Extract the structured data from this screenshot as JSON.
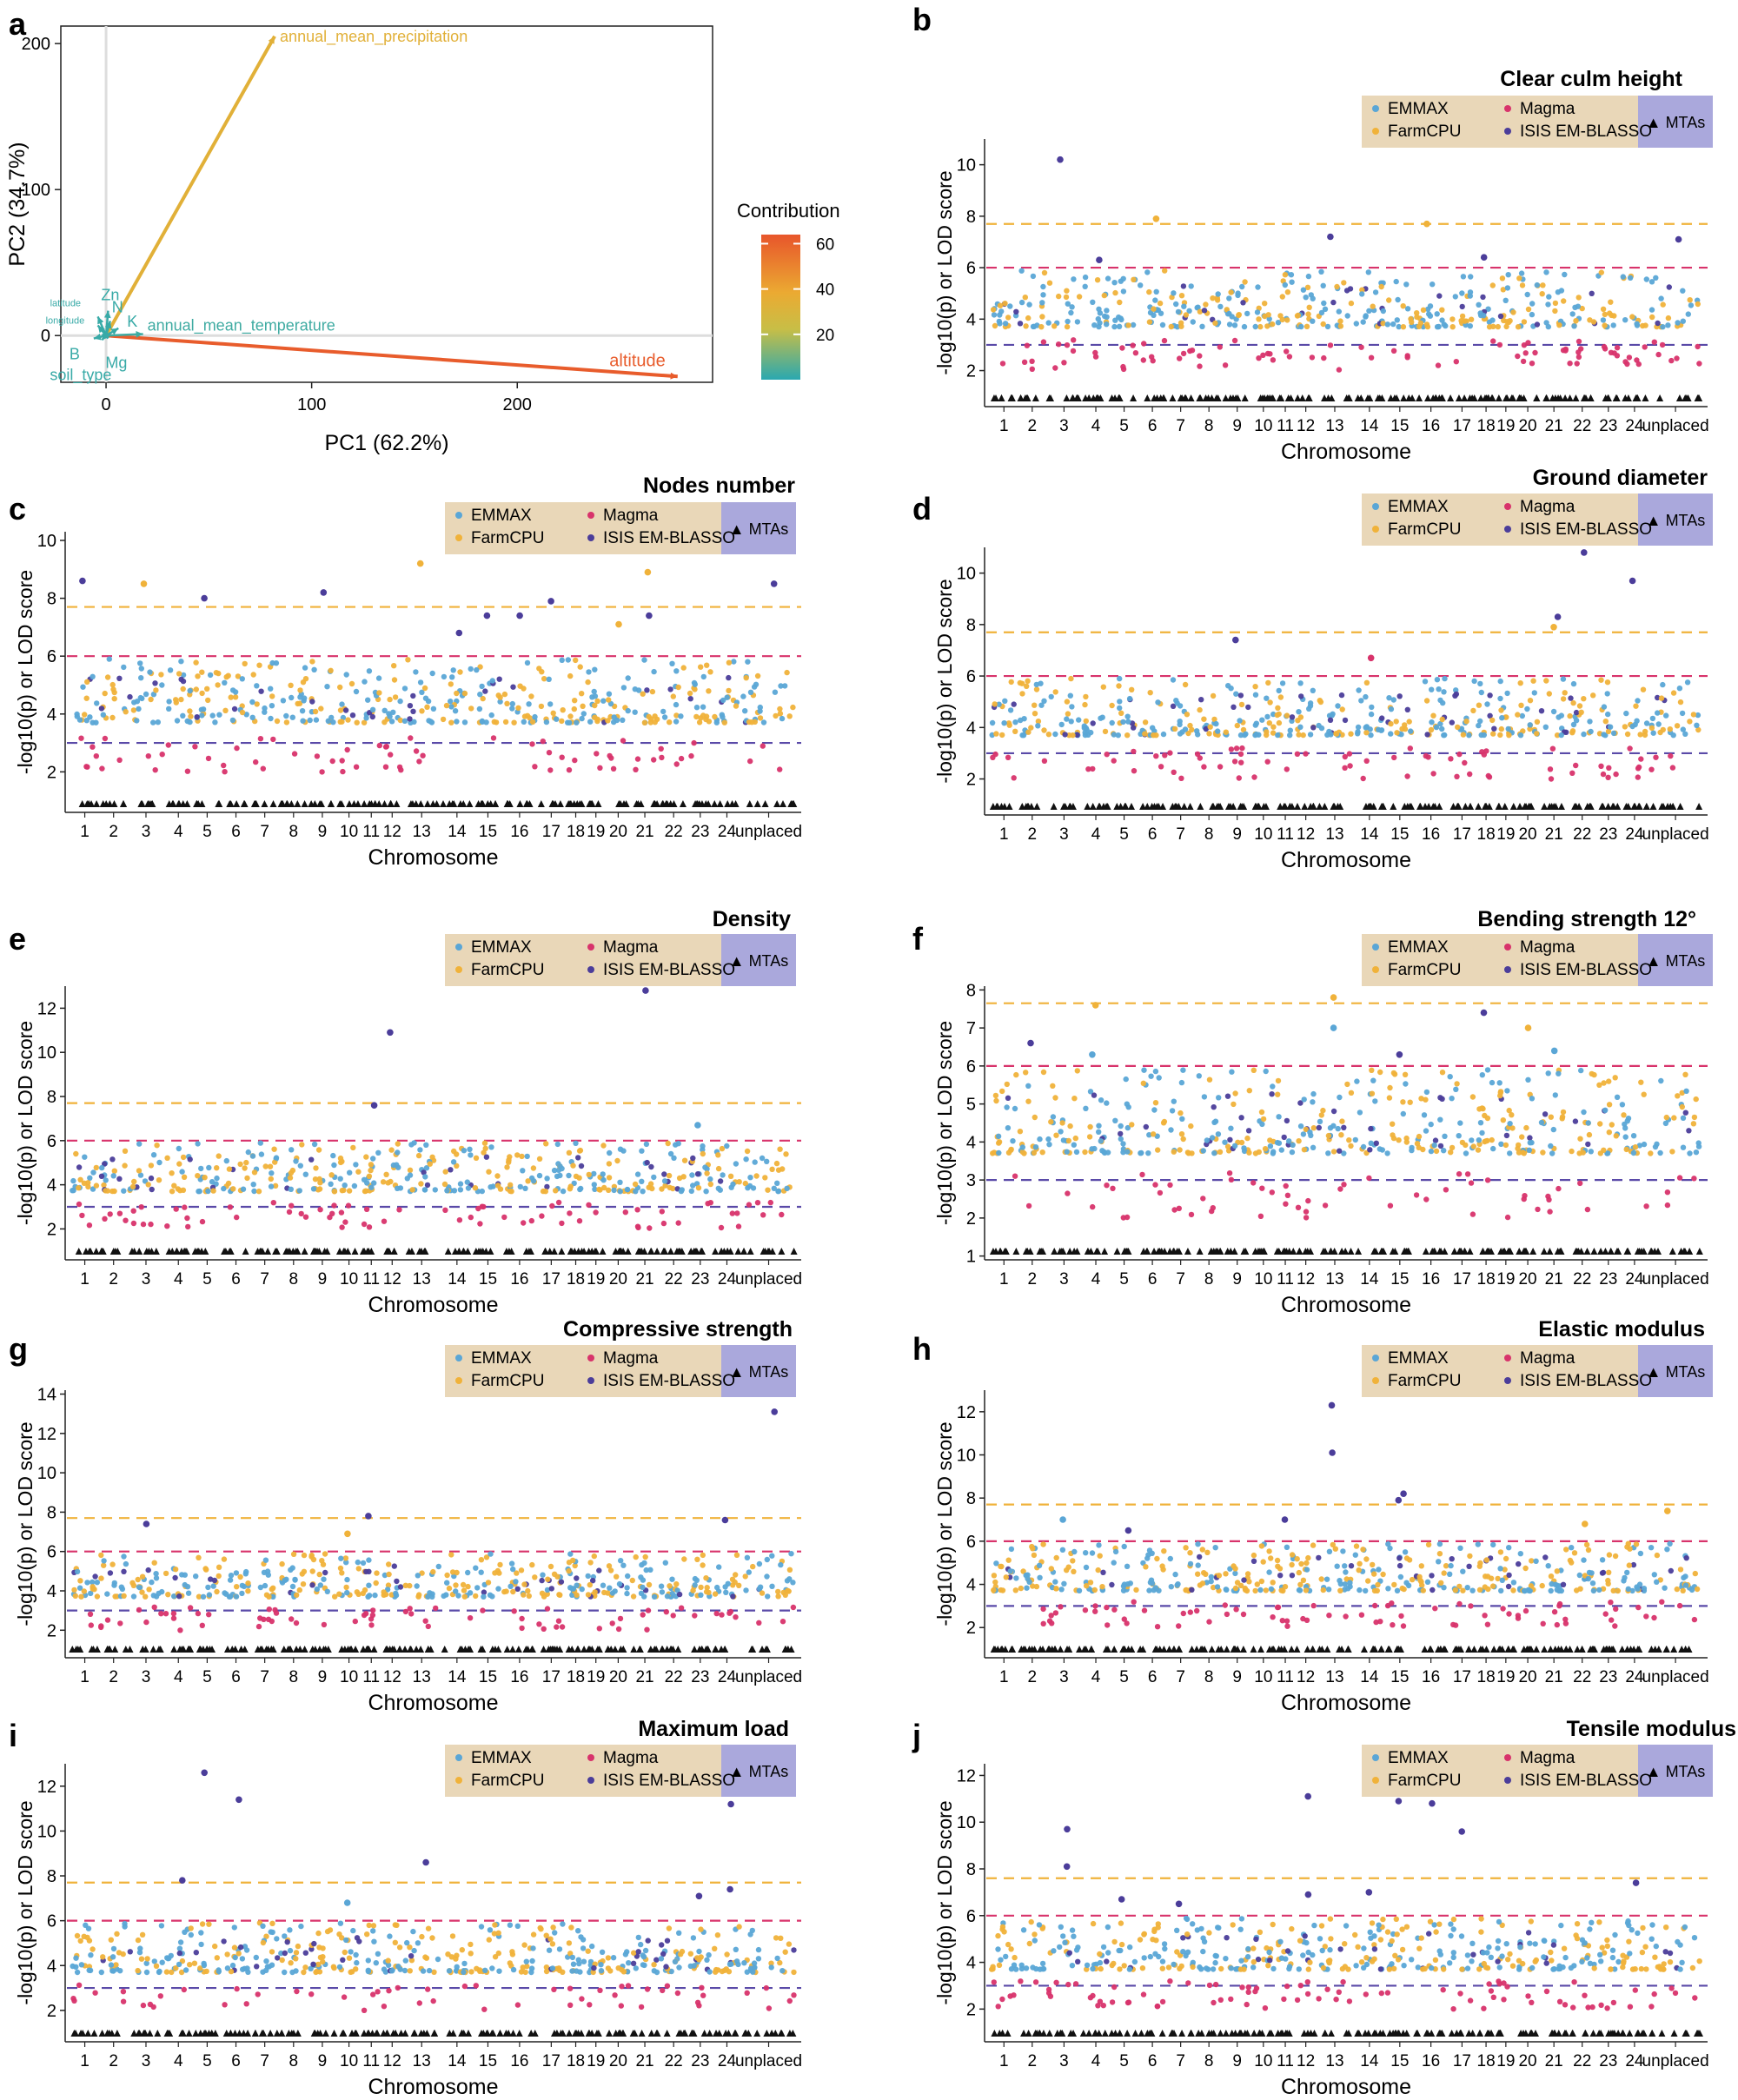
{
  "colors": {
    "emmax": "#5aa6d6",
    "farmcpu": "#f0b23a",
    "magma": "#d8336b",
    "isis": "#4b3d9a",
    "mta": "#111111",
    "line_farmcpu": "#f0b23a",
    "line_magma": "#d8336b",
    "line_isis": "#5a4aa8",
    "legend_bg": "#e9d7b8",
    "legend_mta_bg": "#aaa8dc",
    "altitude": "#e8552b",
    "precip": "#e9a033",
    "teal": "#2aa8b0"
  },
  "legend": {
    "emmax": "EMMAX",
    "farmcpu": "FarmCPU",
    "magma": "Magma",
    "isis": "ISIS EM-BLASSO",
    "mta": "▲ MTAs"
  },
  "chart_data": [
    {
      "id": "a",
      "type": "scatter",
      "title": "",
      "xlabel": "PC1 (62.2%)",
      "ylabel": "PC2 (34.7%)",
      "xlim": [
        -22,
        295
      ],
      "ylim": [
        -32,
        212
      ],
      "x_ticks": [
        0,
        100,
        200
      ],
      "y_ticks": [
        0,
        100,
        200
      ],
      "colorbar": {
        "title": "Contribution",
        "ticks": [
          20,
          40,
          60
        ],
        "range": [
          0,
          64
        ]
      },
      "vectors": [
        {
          "name": "annual_mean_precipitation",
          "x": 82,
          "y": 205,
          "contribution": 34
        },
        {
          "name": "altitude",
          "x": 278,
          "y": -28,
          "contribution": 62
        },
        {
          "name": "annual_mean_temperature",
          "x": 18,
          "y": 1,
          "contribution": 3
        },
        {
          "name": "Zn",
          "x": 1,
          "y": 17,
          "contribution": 2
        },
        {
          "name": "N",
          "x": 2,
          "y": 10,
          "contribution": 2
        },
        {
          "name": "K",
          "x": 6,
          "y": 5,
          "contribution": 2
        },
        {
          "name": "latitude",
          "x": -4,
          "y": 13,
          "contribution": 2
        },
        {
          "name": "longitude",
          "x": -4,
          "y": 7,
          "contribution": 2
        },
        {
          "name": "B",
          "x": -6,
          "y": -2,
          "contribution": 2
        },
        {
          "name": "Mg",
          "x": 1,
          "y": -2,
          "contribution": 2
        },
        {
          "name": "soil_type",
          "x": -2,
          "y": -3,
          "contribution": 2
        }
      ]
    },
    {
      "id": "b",
      "type": "scatter",
      "title": "Clear culm height",
      "xlabel": "Chromosome",
      "ylabel": "-log10(p) or LOD score",
      "ylim": [
        0.6,
        11
      ],
      "y_ticks": [
        2,
        4,
        6,
        8,
        10
      ],
      "thresholds": {
        "farmcpu": 7.7,
        "magma": 6.0,
        "isis": 3.0
      },
      "chromosomes": [
        "1",
        "2",
        "3",
        "4",
        "5",
        "6",
        "7",
        "8",
        "9",
        "10",
        "11",
        "12",
        "13",
        "14",
        "15",
        "16",
        "17",
        "18",
        "19",
        "20",
        "21",
        "22",
        "23",
        "24",
        "unplaced"
      ],
      "outliers": [
        {
          "chr": "3",
          "value": 10.2,
          "method": "isis"
        },
        {
          "chr": "6",
          "value": 7.9,
          "method": "farmcpu"
        },
        {
          "chr": "16",
          "value": 7.7,
          "method": "farmcpu"
        },
        {
          "chr": "13",
          "value": 7.2,
          "method": "isis"
        },
        {
          "chr": "unplaced",
          "value": 7.1,
          "method": "isis"
        },
        {
          "chr": "18",
          "value": 6.4,
          "method": "isis"
        },
        {
          "chr": "4",
          "value": 6.3,
          "method": "isis"
        }
      ]
    },
    {
      "id": "c",
      "type": "scatter",
      "title": "Nodes number",
      "xlabel": "Chromosome",
      "ylabel": "-log10(p) or LOD score",
      "ylim": [
        0.6,
        10.3
      ],
      "y_ticks": [
        2,
        4,
        6,
        8,
        10
      ],
      "thresholds": {
        "farmcpu": 7.7,
        "magma": 6.0,
        "isis": 3.0
      },
      "chromosomes": [
        "1",
        "2",
        "3",
        "4",
        "5",
        "6",
        "7",
        "8",
        "9",
        "10",
        "11",
        "12",
        "13",
        "14",
        "15",
        "16",
        "17",
        "18",
        "19",
        "20",
        "21",
        "22",
        "23",
        "24",
        "unplaced"
      ],
      "outliers": [
        {
          "chr": "13",
          "value": 9.2,
          "method": "farmcpu"
        },
        {
          "chr": "21",
          "value": 8.9,
          "method": "farmcpu"
        },
        {
          "chr": "1",
          "value": 8.6,
          "method": "isis"
        },
        {
          "chr": "3",
          "value": 8.5,
          "method": "farmcpu"
        },
        {
          "chr": "unplaced",
          "value": 8.5,
          "method": "isis"
        },
        {
          "chr": "9",
          "value": 8.2,
          "method": "isis"
        },
        {
          "chr": "5",
          "value": 8.0,
          "method": "isis"
        },
        {
          "chr": "17",
          "value": 7.9,
          "method": "isis"
        },
        {
          "chr": "15",
          "value": 7.4,
          "method": "isis"
        },
        {
          "chr": "16",
          "value": 7.4,
          "method": "isis"
        },
        {
          "chr": "21",
          "value": 7.4,
          "method": "isis"
        },
        {
          "chr": "20",
          "value": 7.1,
          "method": "farmcpu"
        },
        {
          "chr": "14",
          "value": 6.8,
          "method": "isis"
        }
      ]
    },
    {
      "id": "d",
      "type": "scatter",
      "title": "Ground diameter",
      "xlabel": "Chromosome",
      "ylabel": "-log10(p) or LOD score",
      "ylim": [
        0.6,
        11
      ],
      "y_ticks": [
        2,
        4,
        6,
        8,
        10
      ],
      "thresholds": {
        "farmcpu": 7.7,
        "magma": 6.0,
        "isis": 3.0
      },
      "chromosomes": [
        "1",
        "2",
        "3",
        "4",
        "5",
        "6",
        "7",
        "8",
        "9",
        "10",
        "11",
        "12",
        "13",
        "14",
        "15",
        "16",
        "17",
        "18",
        "19",
        "20",
        "21",
        "22",
        "23",
        "24",
        "unplaced"
      ],
      "outliers": [
        {
          "chr": "22",
          "value": 10.8,
          "method": "isis"
        },
        {
          "chr": "24",
          "value": 9.7,
          "method": "isis"
        },
        {
          "chr": "21",
          "value": 8.3,
          "method": "isis"
        },
        {
          "chr": "21",
          "value": 7.9,
          "method": "farmcpu"
        },
        {
          "chr": "9",
          "value": 7.4,
          "method": "isis"
        },
        {
          "chr": "14",
          "value": 6.7,
          "method": "magma"
        }
      ]
    },
    {
      "id": "e",
      "type": "scatter",
      "title": "Density",
      "xlabel": "Chromosome",
      "ylabel": "-log10(p) or LOD score",
      "ylim": [
        0.6,
        13
      ],
      "y_ticks": [
        2,
        4,
        6,
        8,
        10,
        12
      ],
      "thresholds": {
        "farmcpu": 7.7,
        "magma": 6.0,
        "isis": 3.0
      },
      "chromosomes": [
        "1",
        "2",
        "3",
        "4",
        "5",
        "6",
        "7",
        "8",
        "9",
        "10",
        "11",
        "12",
        "13",
        "14",
        "15",
        "16",
        "17",
        "18",
        "19",
        "20",
        "21",
        "22",
        "23",
        "24",
        "unplaced"
      ],
      "outliers": [
        {
          "chr": "21",
          "value": 12.8,
          "method": "isis"
        },
        {
          "chr": "12",
          "value": 10.9,
          "method": "isis"
        },
        {
          "chr": "11",
          "value": 7.6,
          "method": "isis"
        },
        {
          "chr": "23",
          "value": 6.7,
          "method": "emmax"
        }
      ]
    },
    {
      "id": "f",
      "type": "scatter",
      "title": "Bending strength 12°",
      "xlabel": "Chromosome",
      "ylabel": "-log10(p) or LOD score",
      "ylim": [
        0.9,
        8.1
      ],
      "y_ticks": [
        1,
        2,
        3,
        4,
        5,
        6,
        7,
        8
      ],
      "thresholds": {
        "farmcpu": 7.65,
        "magma": 6.0,
        "isis": 3.0
      },
      "chromosomes": [
        "1",
        "2",
        "3",
        "4",
        "5",
        "6",
        "7",
        "8",
        "9",
        "10",
        "11",
        "12",
        "13",
        "14",
        "15",
        "16",
        "17",
        "18",
        "19",
        "20",
        "21",
        "22",
        "23",
        "24",
        "unplaced"
      ],
      "outliers": [
        {
          "chr": "13",
          "value": 7.8,
          "method": "farmcpu"
        },
        {
          "chr": "4",
          "value": 7.6,
          "method": "farmcpu"
        },
        {
          "chr": "18",
          "value": 7.4,
          "method": "isis"
        },
        {
          "chr": "13",
          "value": 7.0,
          "method": "emmax"
        },
        {
          "chr": "20",
          "value": 7.0,
          "method": "farmcpu"
        },
        {
          "chr": "2",
          "value": 6.6,
          "method": "isis"
        },
        {
          "chr": "21",
          "value": 6.4,
          "method": "emmax"
        },
        {
          "chr": "4",
          "value": 6.3,
          "method": "emmax"
        },
        {
          "chr": "15",
          "value": 6.3,
          "method": "isis"
        }
      ]
    },
    {
      "id": "g",
      "type": "scatter",
      "title": "Compressive strength",
      "xlabel": "Chromosome",
      "ylabel": "-log10(p) or LOD score",
      "ylim": [
        0.6,
        14.2
      ],
      "y_ticks": [
        2,
        4,
        6,
        8,
        10,
        12,
        14
      ],
      "thresholds": {
        "farmcpu": 7.7,
        "magma": 6.0,
        "isis": 3.0
      },
      "chromosomes": [
        "1",
        "2",
        "3",
        "4",
        "5",
        "6",
        "7",
        "8",
        "9",
        "10",
        "11",
        "12",
        "13",
        "14",
        "15",
        "16",
        "17",
        "18",
        "19",
        "20",
        "21",
        "22",
        "23",
        "24",
        "unplaced"
      ],
      "outliers": [
        {
          "chr": "unplaced",
          "value": 13.1,
          "method": "isis"
        },
        {
          "chr": "11",
          "value": 7.8,
          "method": "isis"
        },
        {
          "chr": "24",
          "value": 7.6,
          "method": "isis"
        },
        {
          "chr": "3",
          "value": 7.4,
          "method": "isis"
        },
        {
          "chr": "10",
          "value": 6.9,
          "method": "farmcpu"
        }
      ]
    },
    {
      "id": "h",
      "type": "scatter",
      "title": "Elastic modulus",
      "xlabel": "Chromosome",
      "ylabel": "-log10(p) or LOD score",
      "ylim": [
        0.6,
        13
      ],
      "y_ticks": [
        2,
        4,
        6,
        8,
        10,
        12
      ],
      "thresholds": {
        "farmcpu": 7.7,
        "magma": 6.0,
        "isis": 3.0
      },
      "chromosomes": [
        "1",
        "2",
        "3",
        "4",
        "5",
        "6",
        "7",
        "8",
        "9",
        "10",
        "11",
        "12",
        "13",
        "14",
        "15",
        "16",
        "17",
        "18",
        "19",
        "20",
        "21",
        "22",
        "23",
        "24",
        "unplaced"
      ],
      "outliers": [
        {
          "chr": "13",
          "value": 12.3,
          "method": "isis"
        },
        {
          "chr": "13",
          "value": 10.1,
          "method": "isis"
        },
        {
          "chr": "15",
          "value": 8.2,
          "method": "isis"
        },
        {
          "chr": "15",
          "value": 7.9,
          "method": "isis"
        },
        {
          "chr": "unplaced",
          "value": 7.4,
          "method": "farmcpu"
        },
        {
          "chr": "3",
          "value": 7.0,
          "method": "emmax"
        },
        {
          "chr": "11",
          "value": 7.0,
          "method": "isis"
        },
        {
          "chr": "22",
          "value": 6.8,
          "method": "farmcpu"
        },
        {
          "chr": "5",
          "value": 6.5,
          "method": "isis"
        }
      ]
    },
    {
      "id": "i",
      "type": "scatter",
      "title": "Maximum load",
      "xlabel": "Chromosome",
      "ylabel": "-log10(p) or LOD score",
      "ylim": [
        0.6,
        13
      ],
      "y_ticks": [
        2,
        4,
        6,
        8,
        10,
        12
      ],
      "thresholds": {
        "farmcpu": 7.7,
        "magma": 6.0,
        "isis": 3.0
      },
      "chromosomes": [
        "1",
        "2",
        "3",
        "4",
        "5",
        "6",
        "7",
        "8",
        "9",
        "10",
        "11",
        "12",
        "13",
        "14",
        "15",
        "16",
        "17",
        "18",
        "19",
        "20",
        "21",
        "22",
        "23",
        "24",
        "unplaced"
      ],
      "outliers": [
        {
          "chr": "5",
          "value": 12.6,
          "method": "isis"
        },
        {
          "chr": "6",
          "value": 11.4,
          "method": "isis"
        },
        {
          "chr": "24",
          "value": 11.2,
          "method": "isis"
        },
        {
          "chr": "13",
          "value": 8.6,
          "method": "isis"
        },
        {
          "chr": "4",
          "value": 7.8,
          "method": "isis"
        },
        {
          "chr": "24",
          "value": 7.4,
          "method": "isis"
        },
        {
          "chr": "23",
          "value": 7.1,
          "method": "isis"
        },
        {
          "chr": "10",
          "value": 6.8,
          "method": "emmax"
        }
      ]
    },
    {
      "id": "j",
      "type": "scatter",
      "title": "Tensile modulus",
      "xlabel": "Chromosome",
      "ylabel": "-log10(p) or LOD score",
      "ylim": [
        0.6,
        12.5
      ],
      "y_ticks": [
        2,
        4,
        6,
        8,
        10,
        12
      ],
      "thresholds": {
        "farmcpu": 7.6,
        "magma": 6.0,
        "isis": 3.0
      },
      "chromosomes": [
        "1",
        "2",
        "3",
        "4",
        "5",
        "6",
        "7",
        "8",
        "9",
        "10",
        "11",
        "12",
        "13",
        "14",
        "15",
        "16",
        "17",
        "18",
        "19",
        "20",
        "21",
        "22",
        "23",
        "24",
        "unplaced"
      ],
      "outliers": [
        {
          "chr": "12",
          "value": 11.1,
          "method": "isis"
        },
        {
          "chr": "15",
          "value": 10.9,
          "method": "isis"
        },
        {
          "chr": "16",
          "value": 10.8,
          "method": "isis"
        },
        {
          "chr": "3",
          "value": 9.7,
          "method": "isis"
        },
        {
          "chr": "17",
          "value": 9.6,
          "method": "isis"
        },
        {
          "chr": "3",
          "value": 8.1,
          "method": "isis"
        },
        {
          "chr": "24",
          "value": 7.4,
          "method": "isis"
        },
        {
          "chr": "14",
          "value": 7.0,
          "method": "isis"
        },
        {
          "chr": "12",
          "value": 6.9,
          "method": "isis"
        },
        {
          "chr": "5",
          "value": 6.7,
          "method": "isis"
        },
        {
          "chr": "7",
          "value": 6.5,
          "method": "isis"
        }
      ]
    }
  ]
}
